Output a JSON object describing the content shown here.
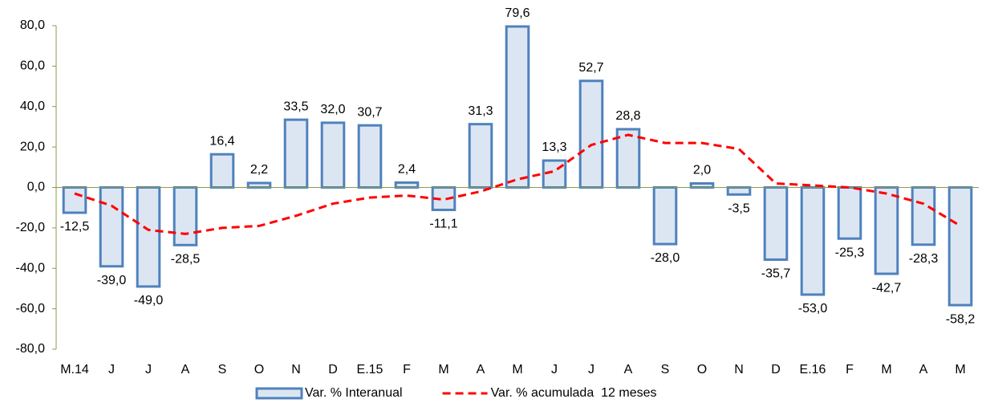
{
  "chart_data": {
    "type": "bar",
    "categories": [
      "M.14",
      "J",
      "J",
      "A",
      "S",
      "O",
      "N",
      "D",
      "E.15",
      "F",
      "M",
      "A",
      "M",
      "J",
      "J",
      "A",
      "S",
      "O",
      "N",
      "D",
      "E.16",
      "F",
      "M",
      "A",
      "M"
    ],
    "series": [
      {
        "name": "Var. % Interanual",
        "type": "bar",
        "color": "#dce6f2",
        "edge_color": "#4f81bd",
        "values": [
          -12.5,
          -39.0,
          -49.0,
          -28.5,
          16.4,
          2.2,
          33.5,
          32.0,
          30.7,
          2.4,
          -11.1,
          31.3,
          79.6,
          13.3,
          52.7,
          28.8,
          -28.0,
          2.0,
          -3.5,
          -35.7,
          -53.0,
          -25.3,
          -42.7,
          -28.3,
          -58.2
        ],
        "value_labels": [
          "-12,5",
          "-39,0",
          "-49,0",
          "-28,5",
          "16,4",
          "2,2",
          "33,5",
          "32,0",
          "30,7",
          "2,4",
          "-11,1",
          "31,3",
          "79,6",
          "13,3",
          "52,7",
          "28,8",
          "-28,0",
          "2,0",
          "-3,5",
          "-35,7",
          "-53,0",
          "-25,3",
          "-42,7",
          "-28,3",
          "-58,2"
        ]
      },
      {
        "name": "Var. % acumulada  12 meses",
        "type": "line",
        "color": "#ff0000",
        "dashed": true,
        "values": [
          -3,
          -9,
          -21,
          -23,
          -20,
          -19,
          -14,
          -8,
          -5,
          -4,
          -6,
          -2,
          4,
          8,
          21,
          26,
          22,
          22,
          19,
          2,
          1,
          0,
          -3,
          -8,
          -19
        ]
      }
    ],
    "ylim": [
      -80,
      80
    ],
    "yticks": [
      {
        "value": -80,
        "label": "-80,0"
      },
      {
        "value": -60,
        "label": "-60,0"
      },
      {
        "value": -40,
        "label": "-40,0"
      },
      {
        "value": -20,
        "label": "-20,0"
      },
      {
        "value": 0,
        "label": "0,0"
      },
      {
        "value": 20,
        "label": "20,0"
      },
      {
        "value": 40,
        "label": "40,0"
      },
      {
        "value": 60,
        "label": "60,0"
      },
      {
        "value": 80,
        "label": "80,0"
      }
    ],
    "legend": "bottom"
  }
}
